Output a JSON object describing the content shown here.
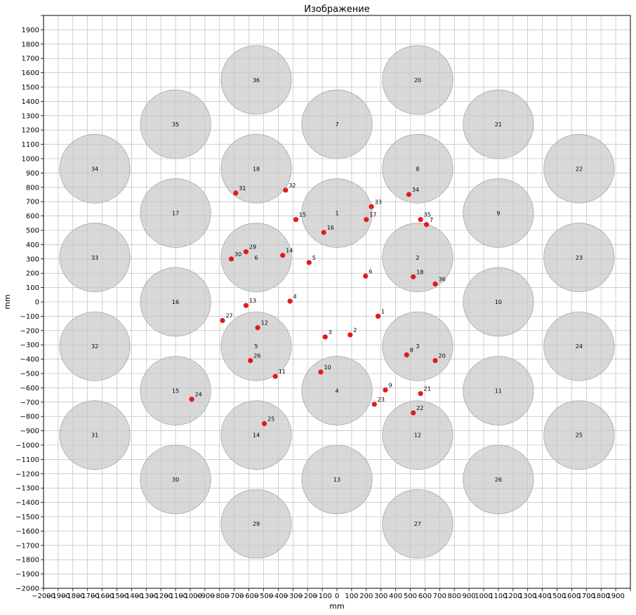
{
  "chart_data": {
    "type": "scatter",
    "title": "Изображение",
    "xlabel": "mm",
    "ylabel": "mm",
    "xlim": [
      -2000,
      2000
    ],
    "ylim": [
      -2000,
      2000
    ],
    "tick_step": 100,
    "grid": true,
    "colors": {
      "circle_fill": "#c8c8c8",
      "circle_edge": "#a8a8a8",
      "point": "#e31a1c",
      "grid": "#b0b0b0"
    },
    "circle_radius": 240,
    "circles": [
      {
        "label": "1",
        "x": 0,
        "y": 620
      },
      {
        "label": "2",
        "x": 550,
        "y": 310
      },
      {
        "label": "3",
        "x": 550,
        "y": -310
      },
      {
        "label": "4",
        "x": 0,
        "y": -620
      },
      {
        "label": "5",
        "x": -550,
        "y": -310
      },
      {
        "label": "6",
        "x": -550,
        "y": 310
      },
      {
        "label": "7",
        "x": 0,
        "y": 1240
      },
      {
        "label": "8",
        "x": 550,
        "y": 930
      },
      {
        "label": "9",
        "x": 1100,
        "y": 620
      },
      {
        "label": "10",
        "x": 1100,
        "y": 0
      },
      {
        "label": "11",
        "x": 1100,
        "y": -620
      },
      {
        "label": "12",
        "x": 550,
        "y": -930
      },
      {
        "label": "13",
        "x": 0,
        "y": -1240
      },
      {
        "label": "14",
        "x": -550,
        "y": -930
      },
      {
        "label": "15",
        "x": -1100,
        "y": -620
      },
      {
        "label": "16",
        "x": -1100,
        "y": 0
      },
      {
        "label": "17",
        "x": -1100,
        "y": 620
      },
      {
        "label": "18",
        "x": -550,
        "y": 930
      },
      {
        "label": "20",
        "x": 550,
        "y": 1550
      },
      {
        "label": "21",
        "x": 1100,
        "y": 1240
      },
      {
        "label": "22",
        "x": 1650,
        "y": 930
      },
      {
        "label": "23",
        "x": 1650,
        "y": 310
      },
      {
        "label": "24",
        "x": 1650,
        "y": -310
      },
      {
        "label": "25",
        "x": 1650,
        "y": -930
      },
      {
        "label": "26",
        "x": 1100,
        "y": -1240
      },
      {
        "label": "27",
        "x": 550,
        "y": -1550
      },
      {
        "label": "29",
        "x": -550,
        "y": -1550
      },
      {
        "label": "30",
        "x": -1100,
        "y": -1240
      },
      {
        "label": "31",
        "x": -1650,
        "y": -930
      },
      {
        "label": "32",
        "x": -1650,
        "y": -310
      },
      {
        "label": "33",
        "x": -1650,
        "y": 310
      },
      {
        "label": "34",
        "x": -1650,
        "y": 930
      },
      {
        "label": "35",
        "x": -1100,
        "y": 1240
      },
      {
        "label": "36",
        "x": -550,
        "y": 1550
      }
    ],
    "points": [
      {
        "label": "1",
        "x": 280,
        "y": -100
      },
      {
        "label": "2",
        "x": 90,
        "y": -230
      },
      {
        "label": "3",
        "x": -80,
        "y": -245
      },
      {
        "label": "4",
        "x": -320,
        "y": 5
      },
      {
        "label": "5",
        "x": -190,
        "y": 275
      },
      {
        "label": "6",
        "x": 195,
        "y": 180
      },
      {
        "label": "8",
        "x": 475,
        "y": -370
      },
      {
        "label": "9",
        "x": 330,
        "y": -615
      },
      {
        "label": "10",
        "x": -110,
        "y": -490
      },
      {
        "label": "11",
        "x": -420,
        "y": -520
      },
      {
        "label": "12",
        "x": -540,
        "y": -180
      },
      {
        "label": "13",
        "x": -620,
        "y": -25
      },
      {
        "label": "14",
        "x": -370,
        "y": 325
      },
      {
        "label": "15",
        "x": -280,
        "y": 575
      },
      {
        "label": "16",
        "x": -90,
        "y": 485
      },
      {
        "label": "17",
        "x": 200,
        "y": 575
      },
      {
        "label": "18",
        "x": 520,
        "y": 175
      },
      {
        "label": "20",
        "x": 670,
        "y": -410
      },
      {
        "label": "21",
        "x": 570,
        "y": -640
      },
      {
        "label": "22",
        "x": 520,
        "y": -775
      },
      {
        "label": "23",
        "x": 255,
        "y": -715
      },
      {
        "label": "24",
        "x": -990,
        "y": -680
      },
      {
        "label": "25",
        "x": -495,
        "y": -850
      },
      {
        "label": "26",
        "x": -590,
        "y": -410
      },
      {
        "label": "27",
        "x": -780,
        "y": -130
      },
      {
        "label": "29",
        "x": -620,
        "y": 350
      },
      {
        "label": "30",
        "x": -720,
        "y": 300
      },
      {
        "label": "31",
        "x": -690,
        "y": 760
      },
      {
        "label": "32",
        "x": -350,
        "y": 780
      },
      {
        "label": "33",
        "x": 235,
        "y": 665
      },
      {
        "label": "34",
        "x": 490,
        "y": 750
      },
      {
        "label": "35",
        "x": 570,
        "y": 575
      },
      {
        "label": "7",
        "x": 610,
        "y": 540
      },
      {
        "label": "36",
        "x": 670,
        "y": 125
      }
    ]
  }
}
